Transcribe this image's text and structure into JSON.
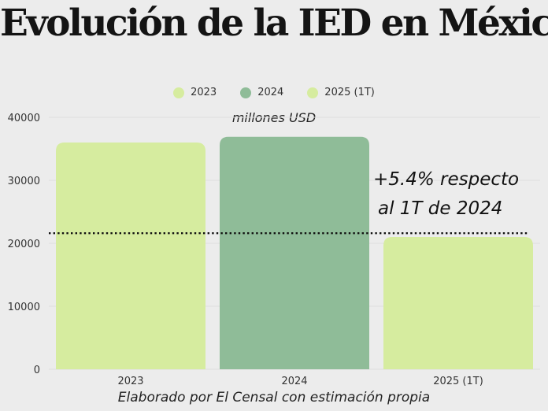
{
  "title": "Evolución de la IED en México",
  "subtitle": "millones USD",
  "annotation": [
    "+5.4% respecto",
    "al 1T de 2024"
  ],
  "source": "Elaborado por El Censal con estimación propia",
  "colors": {
    "bar_2023": "#d6ec9f",
    "bar_2024": "#8fbc98",
    "bar_2025": "#d6ec9f",
    "legend_2023": "#d6ec9f",
    "legend_2024": "#8fbc98",
    "legend_2025": "#d6ec9f"
  },
  "legend": [
    {
      "label": "2023",
      "color": "#d6ec9f"
    },
    {
      "label": "2024",
      "color": "#8fbc98"
    },
    {
      "label": "2025 (1T)",
      "color": "#d6ec9f"
    }
  ],
  "chart_data": {
    "type": "bar",
    "categories": [
      "2023",
      "2024",
      "2025 (1T)"
    ],
    "values": [
      36000,
      36900,
      21000
    ],
    "reference_line": 21600,
    "ylim": [
      0,
      40000
    ],
    "yticks": [
      0,
      10000,
      20000,
      30000,
      40000
    ],
    "grid": true,
    "legend_position": "top"
  }
}
